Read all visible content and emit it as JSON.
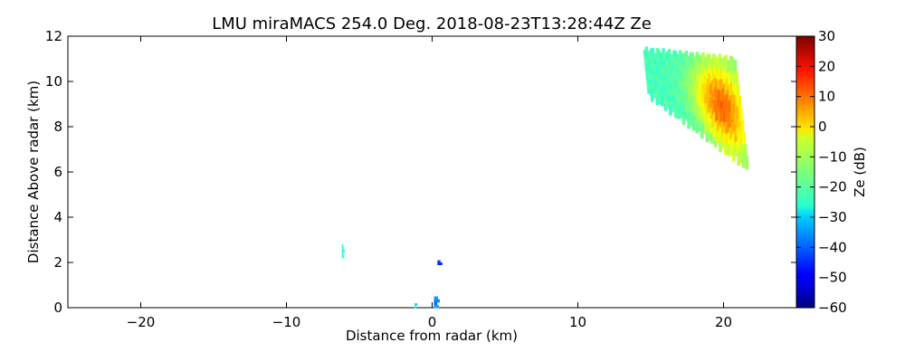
{
  "chart_data": {
    "type": "heatmap",
    "title": "LMU miraMACS 254.0 Deg. 2018-08-23T13:28:44Z  Ze",
    "xlabel": "Distance from radar (km)",
    "ylabel": "Distance Above radar  (km)",
    "xlim": [
      -25,
      25
    ],
    "ylim": [
      0,
      12
    ],
    "xticks": [
      -20,
      -10,
      0,
      10,
      20
    ],
    "xtick_labels": [
      "−20",
      "−10",
      "0",
      "10",
      "20"
    ],
    "yticks": [
      0,
      2,
      4,
      6,
      8,
      10,
      12
    ],
    "ytick_labels": [
      "0",
      "2",
      "4",
      "6",
      "8",
      "10",
      "12"
    ],
    "colorbar": {
      "label": "Ze (dB)",
      "range": [
        -60,
        30
      ],
      "ticks": [
        -60,
        -50,
        -40,
        -30,
        -20,
        -10,
        0,
        10,
        20,
        30
      ],
      "tick_labels": [
        "−60",
        "−50",
        "−40",
        "−30",
        "−20",
        "−10",
        "0",
        "10",
        "20",
        "30"
      ],
      "colormap": "jet"
    },
    "grid": false,
    "clusters": [
      {
        "x": [
          -6.2,
          -6.0
        ],
        "y": [
          2.2,
          2.8
        ],
        "ze": -25
      },
      {
        "x": [
          0.3,
          0.7
        ],
        "y": [
          1.9,
          2.1
        ],
        "ze": -45
      },
      {
        "x": [
          0.0,
          0.4
        ],
        "y": [
          0.0,
          0.5
        ],
        "ze": -40
      },
      {
        "x": [
          -1.2,
          -1.0
        ],
        "y": [
          0.0,
          0.2
        ],
        "ze": -30
      },
      {
        "x": [
          14.0,
          21.2
        ],
        "y": [
          6.3,
          11.6
        ],
        "ze": -20,
        "core_ze": 10
      }
    ]
  }
}
